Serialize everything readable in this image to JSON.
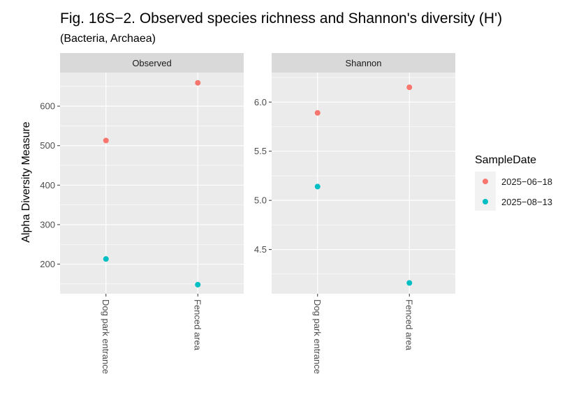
{
  "title": "Fig. 16S−2. Observed species richness and Shannon's diversity (H')",
  "subtitle": "(Bacteria, Archaea)",
  "colors": {
    "series1": "#F8766D",
    "series2": "#00BFC4",
    "panel_bg": "#EBEBEB",
    "strip_bg": "#D9D9D9",
    "grid": "#FFFFFF"
  },
  "chart_data": {
    "type": "scatter",
    "ylabel": "Alpha Diversity Measure",
    "categories": [
      "Dog park entrance",
      "Fenced area"
    ],
    "legend": {
      "title": "SampleDate",
      "position": "right",
      "entries": [
        "2025−06−18",
        "2025−08−13"
      ]
    },
    "facets": [
      {
        "name": "Observed",
        "ylim": [
          125,
          685
        ],
        "yticks": [
          200,
          300,
          400,
          500,
          600
        ],
        "ytick_labels": [
          "200",
          "300",
          "400",
          "500",
          "600"
        ],
        "series": [
          {
            "name": "2025−06−18",
            "values": [
              513,
              659
            ]
          },
          {
            "name": "2025−08−13",
            "values": [
              213,
              148
            ]
          }
        ]
      },
      {
        "name": "Shannon",
        "ylim": [
          4.05,
          6.3
        ],
        "yticks": [
          4.5,
          5.0,
          5.5,
          6.0
        ],
        "ytick_labels": [
          "4.5",
          "5.0",
          "5.5",
          "6.0"
        ],
        "series": [
          {
            "name": "2025−06−18",
            "values": [
              5.89,
              6.15
            ]
          },
          {
            "name": "2025−08−13",
            "values": [
              5.14,
              4.16
            ]
          }
        ]
      }
    ]
  }
}
